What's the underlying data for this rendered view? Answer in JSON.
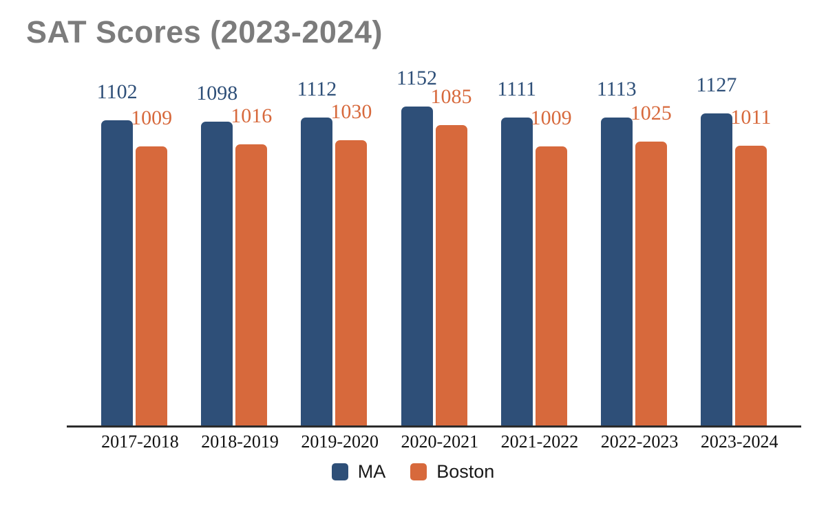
{
  "title": "SAT Scores (2023-2024)",
  "chart_data": {
    "type": "bar",
    "title": "SAT Scores (2023-2024)",
    "categories": [
      "2017-2018",
      "2018-2019",
      "2019-2020",
      "2020-2021",
      "2021-2022",
      "2022-2023",
      "2023-2024"
    ],
    "series": [
      {
        "name": "MA",
        "color": "#2E4F78",
        "values": [
          1102,
          1098,
          1112,
          1152,
          1111,
          1113,
          1127
        ]
      },
      {
        "name": "Boston",
        "color": "#D7693C",
        "values": [
          1009,
          1016,
          1030,
          1085,
          1009,
          1025,
          1011
        ]
      }
    ],
    "xlabel": "",
    "ylabel": "",
    "ylim": [
      0,
      1325
    ],
    "grid": false,
    "legend_position": "bottom",
    "data_labels": true
  },
  "colors": {
    "title": "#7C7C7C",
    "axis_line": "#2B2B2B",
    "tick_label": "#101010",
    "legend_text": "#1A1A1A",
    "background": "#FFFFFF"
  }
}
